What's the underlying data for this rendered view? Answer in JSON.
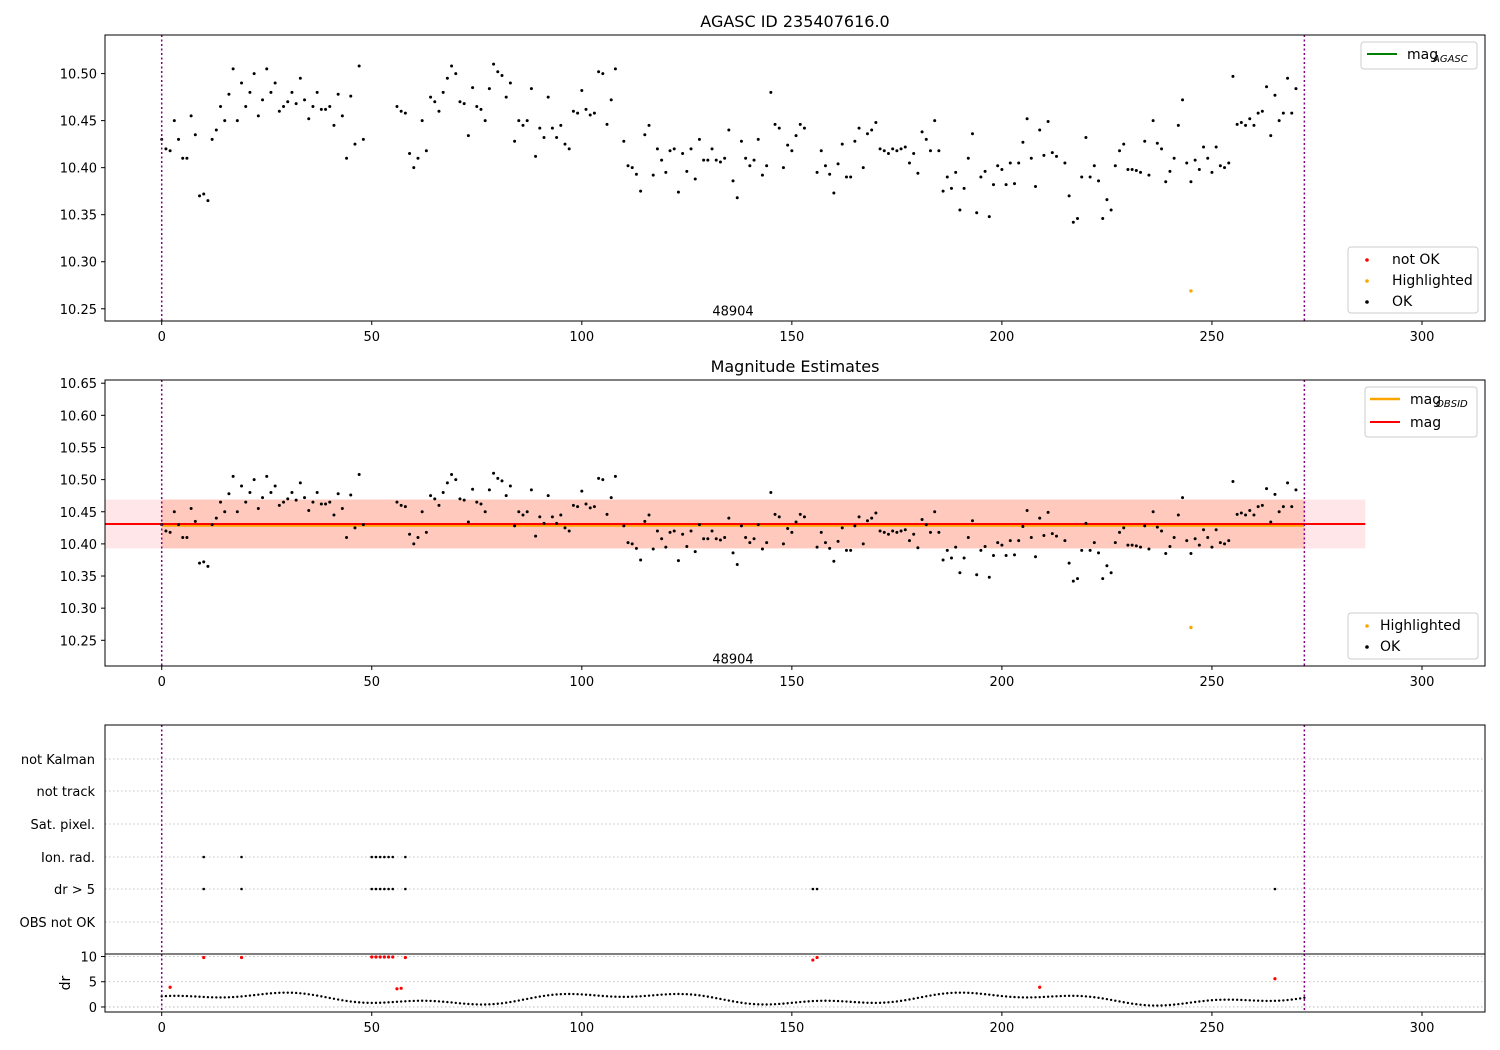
{
  "chart_data": [
    {
      "type": "scatter",
      "title": "AGASC ID 235407616.0",
      "xlim": [
        -13.5,
        315
      ],
      "ylim": [
        10.237,
        10.541
      ],
      "x_ticks": [
        0,
        50,
        100,
        150,
        200,
        250,
        300
      ],
      "y_ticks": [
        10.25,
        10.3,
        10.35,
        10.4,
        10.45,
        10.5
      ],
      "y_tick_labels": [
        "10.25",
        "10.30",
        "10.35",
        "10.40",
        "10.45",
        "10.50"
      ],
      "x_tick_labels": [
        "0",
        "50",
        "100",
        "150",
        "200",
        "250",
        "300"
      ],
      "vlines": [
        0,
        272
      ],
      "annotation": {
        "text": "48904",
        "x": 136,
        "y": 10.248
      },
      "legend_lines": [
        {
          "label": "mag",
          "sub": "AGASC",
          "color": "#008000"
        }
      ],
      "legend_points": [
        {
          "label": "not OK",
          "color": "#ff0000"
        },
        {
          "label": "Highlighted",
          "color": "#ffa500"
        },
        {
          "label": "OK",
          "color": "#000000"
        }
      ],
      "series": [
        {
          "name": "Highlighted",
          "color": "#ffa500",
          "points": [
            [
              245,
              10.269
            ]
          ]
        }
      ]
    },
    {
      "type": "scatter",
      "title": "Magnitude Estimates",
      "xlim": [
        -13.5,
        315
      ],
      "ylim": [
        10.21,
        10.655
      ],
      "x_ticks": [
        0,
        50,
        100,
        150,
        200,
        250,
        300
      ],
      "y_ticks": [
        10.25,
        10.3,
        10.35,
        10.4,
        10.45,
        10.5,
        10.55,
        10.6,
        10.65
      ],
      "y_tick_labels": [
        "10.25",
        "10.30",
        "10.35",
        "10.40",
        "10.45",
        "10.50",
        "10.55",
        "10.60",
        "10.65"
      ],
      "x_tick_labels": [
        "0",
        "50",
        "100",
        "150",
        "200",
        "250",
        "300"
      ],
      "vlines": [
        0,
        272
      ],
      "annotation": {
        "text": "48904",
        "x": 136,
        "y": 10.222
      },
      "bands": [
        {
          "x": [
            -13.5,
            286.5
          ],
          "y": [
            10.393,
            10.469
          ],
          "color": "#ffb6c1",
          "opacity": 0.35
        },
        {
          "x": [
            0,
            272
          ],
          "y": [
            10.393,
            10.469
          ],
          "color": "#ffa07a",
          "opacity": 0.4
        }
      ],
      "hlines": [
        {
          "name": "mag_obsid",
          "y": 10.429,
          "x": [
            0,
            272
          ],
          "color": "#ffa500",
          "width": 3
        },
        {
          "name": "mag",
          "y": 10.431,
          "x": [
            -13.5,
            286.5
          ],
          "color": "#ff0000",
          "width": 2
        }
      ],
      "legend_lines": [
        {
          "label": "mag",
          "sub": "OBSID",
          "color": "#ffa500"
        },
        {
          "label": "mag",
          "sub": "",
          "color": "#ff0000"
        }
      ],
      "legend_points": [
        {
          "label": "Highlighted",
          "color": "#ffa500"
        },
        {
          "label": "OK",
          "color": "#000000"
        }
      ],
      "series": [
        {
          "name": "Highlighted",
          "color": "#ffa500",
          "points": [
            [
              245,
              10.27
            ]
          ]
        }
      ]
    },
    {
      "type": "scatter",
      "title": "",
      "xlim": [
        -13.5,
        315
      ],
      "categories": [
        "not Kalman",
        "not track",
        "Sat. pixel.",
        "Ion. rad.",
        "dr > 5",
        "OBS not OK"
      ],
      "vlines": [
        0,
        272
      ],
      "flags": {
        "Ion. rad.": [
          10,
          19,
          50,
          51,
          52,
          53,
          54,
          55,
          58
        ],
        "dr > 5": [
          10,
          19,
          50,
          51,
          52,
          53,
          54,
          55,
          58,
          155,
          156,
          265
        ]
      }
    },
    {
      "type": "scatter",
      "title": "",
      "ylabel": "dr",
      "xlim": [
        -13.5,
        315
      ],
      "ylim": [
        -1,
        10.5
      ],
      "y_ticks": [
        0,
        5,
        10
      ],
      "y_tick_labels": [
        "0",
        "5",
        "10"
      ],
      "x_ticks": [
        0,
        50,
        100,
        150,
        200,
        250,
        300
      ],
      "x_tick_labels": [
        "0",
        "50",
        "100",
        "150",
        "200",
        "250",
        "300"
      ],
      "vlines": [
        0,
        272
      ],
      "series_not_ok": [
        [
          2,
          3.9
        ],
        [
          10,
          9.8
        ],
        [
          19,
          9.8
        ],
        [
          50,
          9.9
        ],
        [
          51,
          9.9
        ],
        [
          52,
          9.9
        ],
        [
          53,
          9.9
        ],
        [
          54,
          9.9
        ],
        [
          55,
          9.9
        ],
        [
          56,
          3.6
        ],
        [
          57,
          3.7
        ],
        [
          58,
          9.8
        ],
        [
          155,
          9.3
        ],
        [
          156,
          9.8
        ],
        [
          209,
          3.9
        ],
        [
          265,
          5.6
        ]
      ]
    }
  ]
}
